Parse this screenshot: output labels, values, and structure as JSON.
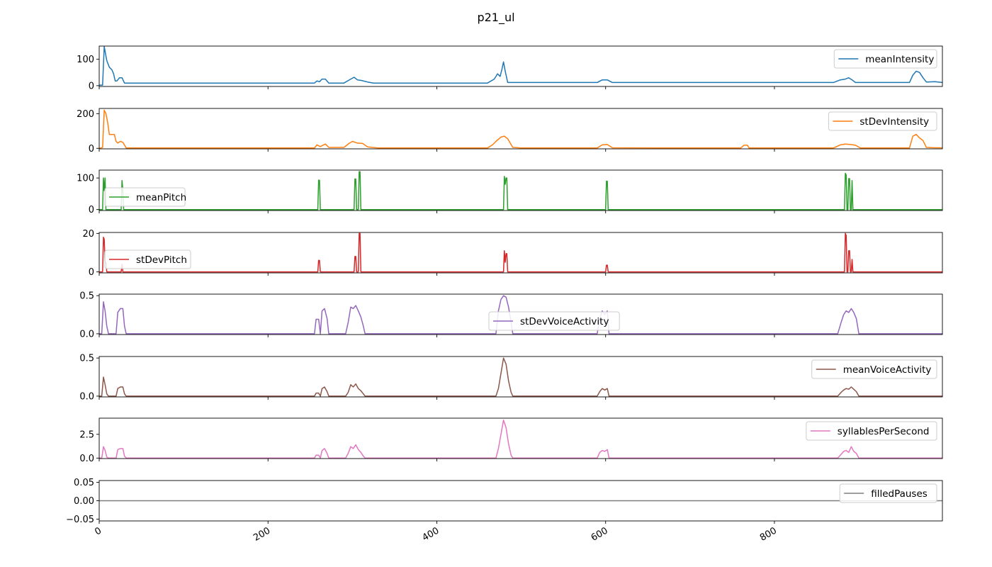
{
  "figure": {
    "title": "p21_ul"
  },
  "chart_data": {
    "type": "line",
    "title": "p21_ul",
    "x_range": [
      0,
      999
    ],
    "x_ticks": [
      0,
      200,
      400,
      600,
      800
    ],
    "x_tick_labels": [
      "0",
      "200",
      "400",
      "600",
      "800"
    ],
    "sharex": true,
    "grid": false,
    "panels": [
      {
        "series_name": "meanIntensity",
        "color": "#1f77b4",
        "ylim": [
          -3,
          150
        ],
        "y_ticks": [
          0,
          100
        ],
        "y_tick_labels": [
          "0",
          "100"
        ],
        "legend_position": "top-right",
        "x": [
          0,
          4,
          6,
          9,
          12,
          15,
          17,
          19,
          21,
          24,
          27,
          30,
          33,
          60,
          120,
          200,
          255,
          258,
          261,
          264,
          268,
          272,
          290,
          298,
          302,
          306,
          310,
          318,
          325,
          330,
          400,
          460,
          468,
          472,
          475,
          477,
          479,
          481,
          484,
          490,
          520,
          590,
          596,
          602,
          608,
          660,
          760,
          870,
          878,
          884,
          888,
          892,
          896,
          902,
          960,
          964,
          968,
          972,
          976,
          980,
          990,
          999
        ],
        "values": [
          2,
          2,
          148,
          95,
          70,
          60,
          45,
          18,
          18,
          30,
          30,
          10,
          10,
          10,
          10,
          10,
          10,
          18,
          15,
          25,
          25,
          10,
          10,
          25,
          32,
          22,
          20,
          14,
          10,
          10,
          10,
          10,
          25,
          45,
          35,
          60,
          90,
          55,
          12,
          12,
          12,
          12,
          22,
          22,
          12,
          12,
          12,
          12,
          22,
          25,
          30,
          22,
          12,
          12,
          12,
          40,
          55,
          50,
          30,
          14,
          15,
          12
        ]
      },
      {
        "series_name": "stDevIntensity",
        "color": "#ff7f0e",
        "ylim": [
          -3,
          230
        ],
        "y_ticks": [
          0,
          200
        ],
        "y_tick_labels": [
          "0",
          "200"
        ],
        "legend_position": "top-right",
        "x": [
          0,
          4,
          6,
          8,
          10,
          12,
          18,
          20,
          22,
          25,
          28,
          32,
          60,
          200,
          255,
          258,
          262,
          268,
          272,
          290,
          296,
          300,
          306,
          312,
          318,
          330,
          400,
          460,
          466,
          470,
          476,
          480,
          484,
          490,
          500,
          590,
          596,
          602,
          608,
          660,
          760,
          764,
          768,
          770,
          870,
          878,
          884,
          890,
          896,
          902,
          960,
          964,
          968,
          972,
          976,
          980,
          990,
          999
        ],
        "values": [
          0,
          5,
          220,
          200,
          150,
          80,
          80,
          40,
          30,
          40,
          35,
          2,
          2,
          2,
          2,
          20,
          10,
          25,
          5,
          5,
          28,
          40,
          30,
          28,
          8,
          2,
          2,
          2,
          20,
          40,
          65,
          70,
          55,
          5,
          2,
          2,
          20,
          22,
          3,
          2,
          2,
          18,
          18,
          2,
          2,
          20,
          25,
          22,
          18,
          2,
          2,
          70,
          80,
          60,
          45,
          5,
          3,
          3
        ]
      },
      {
        "series_name": "meanPitch",
        "color": "#2ca02c",
        "ylim": [
          -3,
          125
        ],
        "y_ticks": [
          0,
          100
        ],
        "y_tick_labels": [
          "0",
          "100"
        ],
        "legend_position": "left",
        "x": [
          0,
          4,
          5,
          6,
          7,
          8,
          26,
          27,
          28,
          29,
          259,
          260,
          261,
          262,
          302,
          303,
          304,
          305,
          307,
          308,
          309,
          310,
          479,
          480,
          481,
          482,
          483,
          484,
          600,
          601,
          602,
          603,
          883,
          884,
          885,
          886,
          887,
          888,
          889,
          890,
          891,
          892,
          893,
          999
        ],
        "values": [
          0,
          0,
          100,
          60,
          100,
          0,
          0,
          92,
          60,
          0,
          0,
          93,
          93,
          0,
          0,
          97,
          97,
          0,
          0,
          120,
          120,
          0,
          0,
          105,
          80,
          100,
          100,
          0,
          0,
          90,
          90,
          0,
          0,
          115,
          110,
          0,
          0,
          98,
          98,
          0,
          0,
          92,
          0,
          0
        ]
      },
      {
        "series_name": "stDevPitch",
        "color": "#d62728",
        "ylim": [
          -0.5,
          20.5
        ],
        "y_ticks": [
          0,
          20
        ],
        "y_tick_labels": [
          "0",
          "20"
        ],
        "legend_position": "left",
        "x": [
          0,
          4,
          5,
          6,
          7,
          8,
          9,
          26,
          27,
          28,
          259,
          260,
          261,
          262,
          302,
          303,
          304,
          305,
          307,
          308,
          309,
          310,
          479,
          480,
          481,
          482,
          483,
          484,
          600,
          601,
          602,
          603,
          883,
          884,
          885,
          886,
          887,
          888,
          889,
          890,
          891,
          892,
          893,
          999
        ],
        "values": [
          0,
          0,
          18,
          17,
          5,
          5,
          0,
          0,
          4,
          0,
          0,
          6,
          6,
          0,
          0,
          8,
          8,
          0,
          0,
          20,
          20,
          0,
          0,
          11,
          5,
          9.5,
          9.5,
          0,
          0,
          3.5,
          3.5,
          0,
          0,
          20,
          19,
          0,
          0,
          11,
          11,
          0,
          0,
          6.5,
          0,
          0
        ]
      },
      {
        "series_name": "stDevVoiceActivity",
        "color": "#9467bd",
        "ylim": [
          -0.01,
          0.52
        ],
        "y_ticks": [
          0.0,
          0.5
        ],
        "y_tick_labels": [
          "0.0",
          "0.5"
        ],
        "legend_position": "center",
        "x": [
          0,
          3,
          5,
          7,
          9,
          11,
          20,
          22,
          25,
          28,
          30,
          32,
          255,
          257,
          260,
          262,
          264,
          267,
          270,
          272,
          292,
          295,
          298,
          301,
          304,
          307,
          310,
          313,
          315,
          470,
          473,
          476,
          479,
          482,
          485,
          488,
          490,
          590,
          593,
          596,
          599,
          602,
          604,
          875,
          879,
          882,
          885,
          888,
          891,
          894,
          897,
          900,
          999
        ],
        "values": [
          0,
          0,
          0.42,
          0.3,
          0.1,
          0,
          0,
          0.28,
          0.33,
          0.33,
          0.1,
          0,
          0,
          0.19,
          0.19,
          0,
          0.3,
          0.33,
          0.2,
          0,
          0,
          0.15,
          0.35,
          0.33,
          0.37,
          0.3,
          0.22,
          0.1,
          0,
          0,
          0.3,
          0.45,
          0.5,
          0.48,
          0.35,
          0.15,
          0,
          0,
          0.2,
          0.3,
          0.25,
          0.3,
          0,
          0,
          0.15,
          0.25,
          0.3,
          0.28,
          0.33,
          0.28,
          0.2,
          0,
          0
        ]
      },
      {
        "series_name": "meanVoiceActivity",
        "color": "#8c564b",
        "ylim": [
          -0.01,
          0.52
        ],
        "y_ticks": [
          0.0,
          0.5
        ],
        "y_tick_labels": [
          "0.0",
          "0.5"
        ],
        "legend_position": "top-right",
        "x": [
          0,
          3,
          5,
          7,
          9,
          11,
          20,
          22,
          25,
          28,
          30,
          32,
          255,
          257,
          260,
          262,
          264,
          267,
          270,
          272,
          292,
          295,
          298,
          301,
          304,
          307,
          310,
          313,
          315,
          470,
          473,
          476,
          479,
          482,
          485,
          488,
          490,
          590,
          593,
          596,
          599,
          602,
          604,
          875,
          879,
          882,
          885,
          888,
          891,
          894,
          897,
          900,
          999
        ],
        "values": [
          0,
          0,
          0.25,
          0.15,
          0.03,
          0,
          0,
          0.1,
          0.12,
          0.12,
          0.03,
          0,
          0,
          0.04,
          0.04,
          0,
          0.1,
          0.12,
          0.06,
          0,
          0,
          0.05,
          0.15,
          0.12,
          0.16,
          0.1,
          0.07,
          0.03,
          0,
          0,
          0.1,
          0.3,
          0.5,
          0.42,
          0.2,
          0.05,
          0,
          0,
          0.06,
          0.1,
          0.08,
          0.1,
          0,
          0,
          0.05,
          0.08,
          0.1,
          0.09,
          0.12,
          0.09,
          0.06,
          0,
          0
        ]
      },
      {
        "series_name": "syllablesPerSecond",
        "color": "#e377c2",
        "ylim": [
          -0.05,
          4.2
        ],
        "y_ticks": [
          0.0,
          2.5
        ],
        "y_tick_labels": [
          "0.0",
          "2.5"
        ],
        "legend_position": "top-right",
        "x": [
          0,
          3,
          5,
          7,
          9,
          11,
          20,
          22,
          25,
          28,
          30,
          32,
          255,
          257,
          260,
          262,
          264,
          267,
          270,
          272,
          292,
          295,
          298,
          301,
          304,
          307,
          310,
          313,
          315,
          470,
          473,
          476,
          479,
          482,
          485,
          488,
          490,
          590,
          593,
          596,
          599,
          602,
          604,
          875,
          879,
          882,
          885,
          888,
          891,
          894,
          897,
          900,
          999
        ],
        "values": [
          0,
          0,
          1.2,
          0.8,
          0.1,
          0,
          0,
          0.9,
          1.0,
          1.0,
          0.2,
          0,
          0,
          0.3,
          0.3,
          0,
          0.8,
          1.0,
          0.5,
          0,
          0,
          0.5,
          1.2,
          1.0,
          1.4,
          0.9,
          0.6,
          0.2,
          0,
          0,
          1.0,
          2.5,
          4.0,
          3.2,
          1.5,
          0.3,
          0,
          0,
          0.6,
          0.8,
          0.7,
          0.9,
          0,
          0,
          0.4,
          0.7,
          0.8,
          0.6,
          1.2,
          0.7,
          0.5,
          0,
          0
        ]
      },
      {
        "series_name": "filledPauses",
        "color": "#7f7f7f",
        "ylim": [
          -0.055,
          0.055
        ],
        "y_ticks": [
          0.05,
          0.0,
          -0.05
        ],
        "y_tick_labels": [
          "0.05",
          "0.00",
          "−0.05"
        ],
        "legend_position": "top-right",
        "x": [
          0,
          999
        ],
        "values": [
          0,
          0
        ]
      }
    ]
  }
}
